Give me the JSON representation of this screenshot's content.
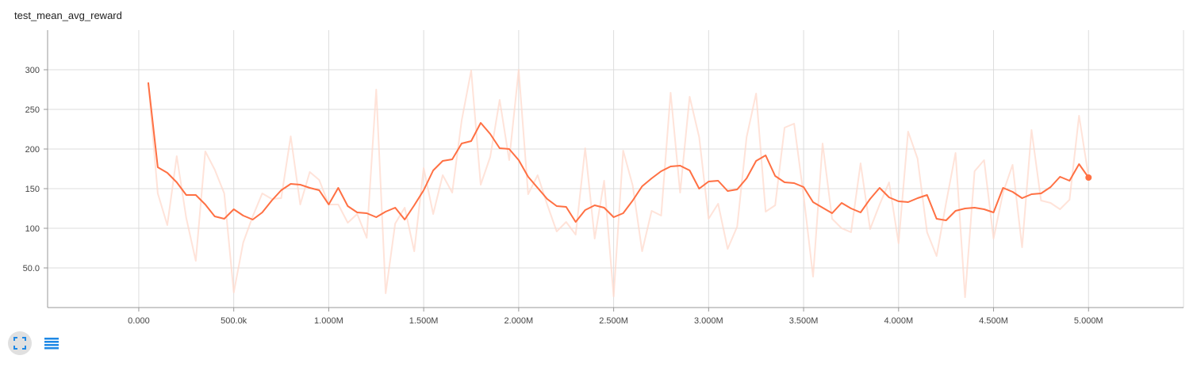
{
  "chart_data": {
    "type": "line",
    "title": "test_mean_avg_reward",
    "xlabel": "",
    "ylabel": "",
    "xlim": [
      -480000,
      5500000
    ],
    "ylim": [
      0,
      350
    ],
    "x_ticks": [
      0,
      500000,
      1000000,
      1500000,
      2000000,
      2500000,
      3000000,
      3500000,
      4000000,
      4500000,
      5000000
    ],
    "x_tick_labels": [
      "0.000",
      "500.0k",
      "1.000M",
      "1.500M",
      "2.000M",
      "2.500M",
      "3.000M",
      "3.500M",
      "4.000M",
      "4.500M",
      "5.000M"
    ],
    "y_ticks": [
      50,
      100,
      150,
      200,
      250,
      300
    ],
    "y_tick_labels": [
      "50.0",
      "100",
      "150",
      "200",
      "250",
      "300"
    ],
    "grid": true,
    "series": [
      {
        "role": "raw",
        "color": "#ffd9cc",
        "x": [
          50000,
          100000,
          150000,
          200000,
          250000,
          300000,
          350000,
          400000,
          450000,
          500000,
          550000,
          600000,
          650000,
          700000,
          750000,
          800000,
          850000,
          900000,
          950000,
          1000000,
          1050000,
          1100000,
          1150000,
          1200000,
          1250000,
          1300000,
          1350000,
          1400000,
          1450000,
          1500000,
          1550000,
          1600000,
          1650000,
          1700000,
          1750000,
          1800000,
          1850000,
          1900000,
          1950000,
          2000000,
          2050000,
          2100000,
          2150000,
          2200000,
          2250000,
          2300000,
          2350000,
          2400000,
          2450000,
          2500000,
          2550000,
          2600000,
          2650000,
          2700000,
          2750000,
          2800000,
          2850000,
          2900000,
          2950000,
          3000000,
          3050000,
          3100000,
          3150000,
          3200000,
          3250000,
          3300000,
          3350000,
          3400000,
          3450000,
          3500000,
          3550000,
          3600000,
          3650000,
          3700000,
          3750000,
          3800000,
          3850000,
          3900000,
          3950000,
          4000000,
          4050000,
          4100000,
          4150000,
          4200000,
          4250000,
          4300000,
          4350000,
          4400000,
          4450000,
          4500000,
          4550000,
          4600000,
          4650000,
          4700000,
          4750000,
          4800000,
          4850000,
          4900000,
          4950000,
          5000000
        ],
        "values": [
          284,
          144,
          104,
          191,
          113,
          59,
          197,
          174,
          144,
          19,
          82,
          115,
          144,
          137,
          138,
          216,
          130,
          171,
          161,
          130,
          130,
          107,
          118,
          88,
          275,
          18,
          106,
          126,
          71,
          176,
          118,
          167,
          145,
          236,
          299,
          155,
          190,
          262,
          186,
          300,
          143,
          167,
          130,
          96,
          108,
          92,
          201,
          87,
          160,
          14,
          198,
          154,
          71,
          122,
          116,
          271,
          145,
          266,
          215,
          112,
          131,
          74,
          102,
          215,
          270,
          121,
          129,
          227,
          232,
          141,
          39,
          207,
          112,
          100,
          95,
          182,
          99,
          130,
          158,
          81,
          222,
          188,
          95,
          65,
          132,
          195,
          13,
          172,
          186,
          87,
          145,
          180,
          76,
          224,
          135,
          132,
          124,
          136,
          242,
          165
        ]
      },
      {
        "role": "smoothed",
        "color": "#ff7043",
        "x": [
          50000,
          100000,
          150000,
          200000,
          250000,
          300000,
          350000,
          400000,
          450000,
          500000,
          550000,
          600000,
          650000,
          700000,
          750000,
          800000,
          850000,
          900000,
          950000,
          1000000,
          1050000,
          1100000,
          1150000,
          1200000,
          1250000,
          1300000,
          1350000,
          1400000,
          1450000,
          1500000,
          1550000,
          1600000,
          1650000,
          1700000,
          1750000,
          1800000,
          1850000,
          1900000,
          1950000,
          2000000,
          2050000,
          2100000,
          2150000,
          2200000,
          2250000,
          2300000,
          2350000,
          2400000,
          2450000,
          2500000,
          2550000,
          2600000,
          2650000,
          2700000,
          2750000,
          2800000,
          2850000,
          2900000,
          2950000,
          3000000,
          3050000,
          3100000,
          3150000,
          3200000,
          3250000,
          3300000,
          3350000,
          3400000,
          3450000,
          3500000,
          3550000,
          3600000,
          3650000,
          3700000,
          3750000,
          3800000,
          3850000,
          3900000,
          3950000,
          4000000,
          4050000,
          4100000,
          4150000,
          4200000,
          4250000,
          4300000,
          4350000,
          4400000,
          4450000,
          4500000,
          4550000,
          4600000,
          4650000,
          4700000,
          4750000,
          4800000,
          4850000,
          4900000,
          4950000,
          5000000
        ],
        "values": [
          284,
          177,
          170,
          158,
          142,
          142,
          130,
          115,
          112,
          124,
          116,
          111,
          120,
          135,
          148,
          156,
          155,
          151,
          148,
          130,
          151,
          128,
          120,
          119,
          114,
          121,
          126,
          111,
          129,
          148,
          173,
          185,
          187,
          207,
          210,
          233,
          219,
          201,
          200,
          186,
          165,
          151,
          137,
          128,
          127,
          108,
          123,
          129,
          126,
          114,
          119,
          135,
          153,
          163,
          172,
          178,
          179,
          173,
          150,
          159,
          160,
          147,
          149,
          163,
          185,
          192,
          166,
          158,
          157,
          152,
          133,
          126,
          119,
          132,
          125,
          120,
          137,
          151,
          139,
          134,
          133,
          138,
          142,
          112,
          110,
          122,
          125,
          126,
          124,
          120,
          151,
          146,
          138,
          143,
          144,
          152,
          165,
          160,
          181,
          164
        ]
      }
    ]
  },
  "toolbar": {
    "expand_icon": "expand-icon",
    "data_icon": "list-icon",
    "accent": "#1e88e5"
  }
}
